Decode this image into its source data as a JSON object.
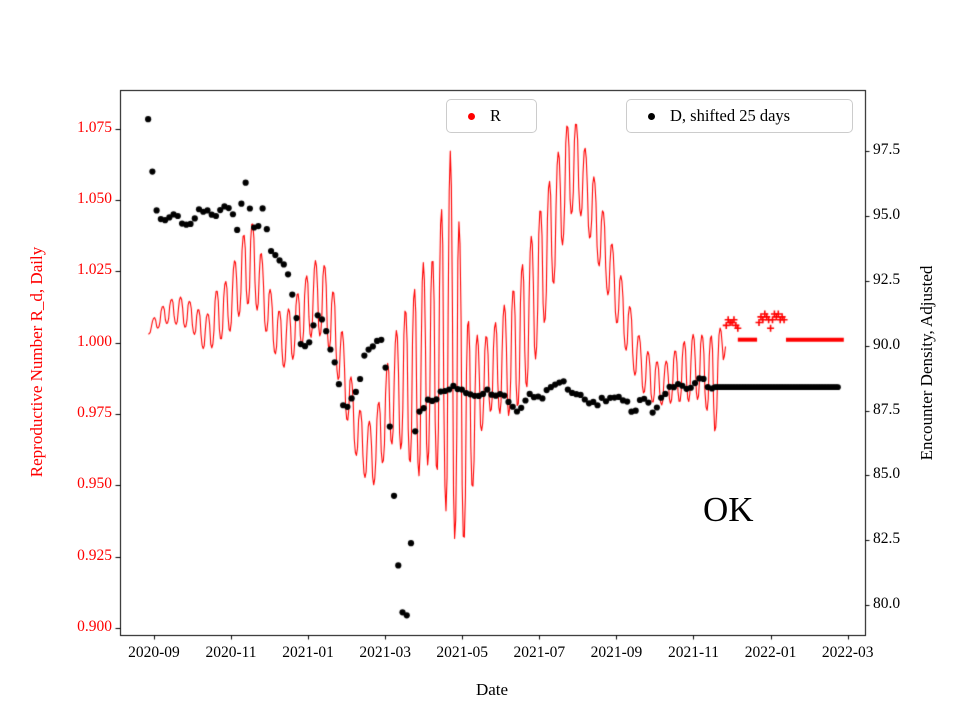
{
  "chart_data": {
    "type": "line",
    "title": "",
    "xlabel": "Date",
    "ylabel_left": "Reproductive Number R_d, Daily",
    "ylabel_right": "Encounter Density, Adjusted",
    "annotation": "OK",
    "grid": false,
    "frame_color": "#000000",
    "legend_border_color": "#cccccc",
    "legend": [
      {
        "label": "R",
        "color": "#ff0000",
        "marker": "dot"
      },
      {
        "label": "D, shifted 25 days",
        "color": "#000000",
        "marker": "dot"
      }
    ],
    "x_axis": {
      "unit": "months_since_2020-08-01",
      "lim": [
        0.12,
        19.45
      ],
      "tick_positions": [
        1,
        3,
        5,
        7,
        9,
        11,
        13,
        15,
        17,
        19
      ],
      "tick_labels": [
        "2020-09",
        "2020-11",
        "2021-01",
        "2021-03",
        "2021-05",
        "2021-07",
        "2021-09",
        "2021-11",
        "2022-01",
        "2022-03"
      ]
    },
    "y_left_axis": {
      "lim": [
        0.8975,
        1.0885
      ],
      "color": "#ff0000",
      "tick_values": [
        0.9,
        0.925,
        0.95,
        0.975,
        1.0,
        1.025,
        1.05,
        1.075
      ],
      "tick_labels": [
        "0.900",
        "0.925",
        "0.950",
        "0.975",
        "1.000",
        "1.025",
        "1.050",
        "1.075"
      ]
    },
    "y_right_axis": {
      "lim": [
        78.85,
        99.85
      ],
      "color": "#000000",
      "tick_values": [
        80.0,
        82.5,
        85.0,
        87.5,
        90.0,
        92.5,
        95.0,
        97.5
      ],
      "tick_labels": [
        "80.0",
        "82.5",
        "85.0",
        "87.5",
        "90.0",
        "92.5",
        "95.0",
        "97.5"
      ]
    },
    "series": {
      "r": {
        "name": "R",
        "color": "#ff0000",
        "style": "oscillating-line",
        "osc_period_months": 0.2333,
        "keypoints_m_mid_amp": [
          [
            0.85,
            1.004,
            0.0012
          ],
          [
            1.1,
            1.008,
            0.003
          ],
          [
            1.4,
            1.011,
            0.004
          ],
          [
            1.7,
            1.011,
            0.005
          ],
          [
            2.0,
            1.009,
            0.005
          ],
          [
            2.2,
            1.005,
            0.006
          ],
          [
            2.4,
            1.003,
            0.007
          ],
          [
            2.6,
            1.009,
            0.009
          ],
          [
            2.9,
            1.012,
            0.01
          ],
          [
            3.1,
            1.018,
            0.011
          ],
          [
            3.3,
            1.024,
            0.013
          ],
          [
            3.5,
            1.029,
            0.015
          ],
          [
            3.7,
            1.024,
            0.013
          ],
          [
            3.9,
            1.014,
            0.01
          ],
          [
            4.1,
            1.006,
            0.009
          ],
          [
            4.35,
            1.0,
            0.009
          ],
          [
            4.6,
            1.004,
            0.01
          ],
          [
            4.9,
            1.011,
            0.011
          ],
          [
            5.2,
            1.016,
            0.013
          ],
          [
            5.45,
            1.014,
            0.013
          ],
          [
            5.7,
            1.004,
            0.012
          ],
          [
            5.95,
            0.988,
            0.012
          ],
          [
            6.2,
            0.972,
            0.01
          ],
          [
            6.45,
            0.963,
            0.01
          ],
          [
            6.7,
            0.961,
            0.011
          ],
          [
            6.95,
            0.972,
            0.014
          ],
          [
            7.2,
            0.983,
            0.018
          ],
          [
            7.45,
            0.986,
            0.024
          ],
          [
            7.7,
            0.986,
            0.03
          ],
          [
            7.95,
            0.99,
            0.038
          ],
          [
            8.2,
            0.994,
            0.034
          ],
          [
            8.45,
            0.998,
            0.048
          ],
          [
            8.7,
            1.0,
            0.068
          ],
          [
            8.9,
            0.988,
            0.058
          ],
          [
            9.1,
            0.97,
            0.04
          ],
          [
            9.3,
            0.978,
            0.026
          ],
          [
            9.5,
            0.985,
            0.016
          ],
          [
            9.75,
            0.99,
            0.014
          ],
          [
            10.0,
            0.993,
            0.018
          ],
          [
            10.3,
            0.996,
            0.022
          ],
          [
            10.6,
            1.005,
            0.024
          ],
          [
            10.9,
            1.018,
            0.024
          ],
          [
            11.2,
            1.032,
            0.022
          ],
          [
            11.45,
            1.045,
            0.02
          ],
          [
            11.7,
            1.058,
            0.018
          ],
          [
            11.9,
            1.063,
            0.016
          ],
          [
            12.1,
            1.058,
            0.014
          ],
          [
            12.4,
            1.046,
            0.013
          ],
          [
            12.7,
            1.032,
            0.012
          ],
          [
            13.0,
            1.018,
            0.011
          ],
          [
            13.3,
            1.005,
            0.01
          ],
          [
            13.6,
            0.993,
            0.009
          ],
          [
            13.9,
            0.987,
            0.008
          ],
          [
            14.2,
            0.985,
            0.007
          ],
          [
            14.5,
            0.988,
            0.009
          ],
          [
            14.8,
            0.99,
            0.011
          ],
          [
            15.1,
            0.992,
            0.012
          ],
          [
            15.3,
            0.99,
            0.012
          ],
          [
            15.55,
            0.985,
            0.018
          ],
          [
            15.75,
            0.998,
            0.008
          ],
          [
            15.85,
            1.004,
            0.004
          ]
        ],
        "plus_markers_m_v": [
          [
            15.85,
            1.006
          ],
          [
            15.9,
            1.008
          ],
          [
            15.95,
            1.007
          ],
          [
            16.0,
            1.007
          ],
          [
            16.05,
            1.008
          ],
          [
            16.1,
            1.006
          ],
          [
            16.15,
            1.005
          ],
          [
            16.7,
            1.007
          ],
          [
            16.75,
            1.009
          ],
          [
            16.8,
            1.008
          ],
          [
            16.85,
            1.01
          ],
          [
            16.9,
            1.009
          ],
          [
            16.95,
            1.008
          ],
          [
            17.0,
            1.005
          ],
          [
            17.05,
            1.008
          ],
          [
            17.1,
            1.01
          ],
          [
            17.15,
            1.009
          ],
          [
            17.2,
            1.01
          ],
          [
            17.25,
            1.008
          ],
          [
            17.3,
            1.009
          ],
          [
            17.35,
            1.008
          ]
        ],
        "flat_segments_m1_m2_v": [
          [
            16.15,
            16.65,
            1.001
          ],
          [
            17.4,
            18.9,
            1.001
          ]
        ]
      },
      "d": {
        "name": "D, shifted 25 days",
        "color": "#000000",
        "style": "scatter-dots",
        "dot_step_months": 0.11,
        "dot_radius_px": 3.1,
        "keypoints_m_v": [
          [
            0.85,
            98.7
          ],
          [
            0.9,
            97.8
          ],
          [
            0.95,
            96.9
          ],
          [
            1.0,
            96.2
          ],
          [
            1.03,
            95.6
          ],
          [
            1.07,
            95.2
          ],
          [
            1.12,
            94.9
          ],
          [
            1.2,
            94.7
          ],
          [
            1.3,
            94.8
          ],
          [
            1.45,
            95.0
          ],
          [
            1.6,
            94.9
          ],
          [
            1.75,
            94.8
          ],
          [
            1.85,
            94.5
          ],
          [
            2.0,
            94.9
          ],
          [
            2.15,
            95.1
          ],
          [
            2.3,
            95.3
          ],
          [
            2.45,
            95.2
          ],
          [
            2.6,
            95.1
          ],
          [
            2.75,
            95.2
          ],
          [
            2.9,
            95.3
          ],
          [
            3.05,
            95.0
          ],
          [
            3.15,
            94.5
          ],
          [
            3.25,
            95.2
          ],
          [
            3.35,
            96.4
          ],
          [
            3.45,
            96.0
          ],
          [
            3.5,
            95.2
          ],
          [
            3.55,
            94.6
          ],
          [
            3.65,
            94.3
          ],
          [
            3.75,
            95.0
          ],
          [
            3.85,
            95.3
          ],
          [
            3.95,
            94.4
          ],
          [
            4.05,
            93.7
          ],
          [
            4.2,
            93.3
          ],
          [
            4.35,
            93.1
          ],
          [
            4.5,
            92.6
          ],
          [
            4.6,
            91.8
          ],
          [
            4.7,
            91.0
          ],
          [
            4.8,
            90.2
          ],
          [
            4.9,
            90.0
          ],
          [
            5.0,
            90.1
          ],
          [
            5.1,
            90.5
          ],
          [
            5.2,
            91.1
          ],
          [
            5.3,
            91.3
          ],
          [
            5.4,
            90.9
          ],
          [
            5.5,
            90.3
          ],
          [
            5.6,
            89.8
          ],
          [
            5.7,
            89.2
          ],
          [
            5.8,
            88.5
          ],
          [
            5.9,
            87.8
          ],
          [
            6.0,
            87.6
          ],
          [
            6.15,
            88.0
          ],
          [
            6.3,
            88.4
          ],
          [
            6.45,
            89.5
          ],
          [
            6.6,
            89.9
          ],
          [
            6.75,
            90.1
          ],
          [
            6.9,
            90.2
          ],
          [
            7.0,
            89.4
          ],
          [
            7.05,
            88.3
          ],
          [
            7.1,
            87.3
          ],
          [
            7.15,
            86.2
          ],
          [
            7.2,
            85.0
          ],
          [
            7.25,
            83.8
          ],
          [
            7.3,
            82.6
          ],
          [
            7.35,
            81.4
          ],
          [
            7.4,
            80.4
          ],
          [
            7.45,
            79.7
          ],
          [
            7.5,
            79.3
          ],
          [
            7.55,
            79.5
          ],
          [
            7.6,
            80.0
          ],
          [
            7.64,
            81.2
          ],
          [
            7.68,
            82.8
          ],
          [
            7.72,
            84.9
          ],
          [
            7.76,
            86.3
          ],
          [
            7.8,
            87.2
          ],
          [
            7.9,
            87.5
          ],
          [
            8.0,
            87.7
          ],
          [
            8.15,
            87.9
          ],
          [
            8.3,
            88.0
          ],
          [
            8.5,
            88.2
          ],
          [
            8.7,
            88.3
          ],
          [
            8.9,
            88.4
          ],
          [
            9.1,
            88.2
          ],
          [
            9.3,
            88.0
          ],
          [
            9.5,
            88.2
          ],
          [
            9.7,
            88.3
          ],
          [
            9.9,
            88.1
          ],
          [
            10.1,
            88.0
          ],
          [
            10.3,
            87.7
          ],
          [
            10.45,
            87.4
          ],
          [
            10.6,
            87.9
          ],
          [
            10.8,
            88.1
          ],
          [
            11.0,
            88.0
          ],
          [
            11.2,
            88.2
          ],
          [
            11.4,
            88.5
          ],
          [
            11.55,
            88.7
          ],
          [
            11.7,
            88.4
          ],
          [
            11.9,
            88.2
          ],
          [
            12.1,
            88.0
          ],
          [
            12.3,
            87.9
          ],
          [
            12.5,
            87.8
          ],
          [
            12.7,
            87.9
          ],
          [
            12.9,
            88.0
          ],
          [
            13.1,
            87.9
          ],
          [
            13.3,
            87.7
          ],
          [
            13.45,
            87.4
          ],
          [
            13.6,
            87.9
          ],
          [
            13.75,
            88.0
          ],
          [
            13.9,
            87.5
          ],
          [
            14.0,
            87.3
          ],
          [
            14.15,
            87.9
          ],
          [
            14.3,
            88.2
          ],
          [
            14.45,
            88.4
          ],
          [
            14.6,
            88.5
          ],
          [
            14.75,
            88.3
          ],
          [
            14.9,
            88.4
          ],
          [
            15.05,
            88.5
          ],
          [
            15.2,
            88.7
          ],
          [
            15.35,
            88.5
          ],
          [
            15.5,
            88.4
          ]
        ],
        "flat_segment_m1_m2_v": [
          15.55,
          18.75,
          88.4
        ]
      }
    }
  }
}
